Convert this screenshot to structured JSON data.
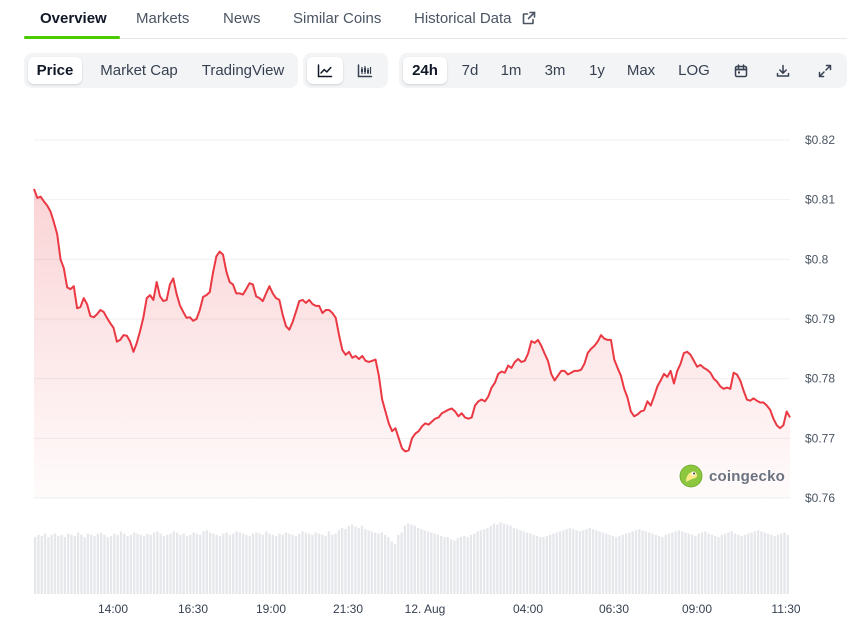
{
  "tabs": {
    "overview": "Overview",
    "markets": "Markets",
    "news": "News",
    "similar": "Similar Coins",
    "historical": "Historical Data"
  },
  "toolbar": {
    "price": "Price",
    "market_cap": "Market Cap",
    "tradingview": "TradingView",
    "line_chart_icon": "line-chart-icon",
    "candle_chart_icon": "candlestick-icon",
    "range": {
      "h24": "24h",
      "d7": "7d",
      "m1": "1m",
      "m3": "3m",
      "y1": "1y",
      "max": "Max"
    },
    "log": "LOG",
    "calendar_icon": "calendar-icon",
    "download_icon": "download-icon",
    "expand_icon": "expand-icon"
  },
  "watermark": {
    "text": "coingecko",
    "icon": "gecko-logo-icon"
  },
  "chart_data": {
    "type": "area",
    "ylim": [
      0.76,
      0.82
    ],
    "yticks": [
      "$0.82",
      "$0.81",
      "$0.8",
      "$0.79",
      "$0.78",
      "$0.77",
      "$0.76"
    ],
    "xticks": [
      "14:00",
      "16:30",
      "19:00",
      "21:30",
      "12. Aug",
      "04:00",
      "06:30",
      "09:00",
      "11:30"
    ],
    "grid": true,
    "line_color": "#ea3943",
    "fill_color": "#ea3943",
    "volume_color": "#e5e7eb",
    "series": [
      {
        "values": [
          0.8118,
          0.8103,
          0.8105,
          0.8097,
          0.809,
          0.808,
          0.8062,
          0.8042,
          0.8,
          0.7985,
          0.7953,
          0.795,
          0.7955,
          0.7918,
          0.792,
          0.7935,
          0.7925,
          0.7905,
          0.7903,
          0.7908,
          0.7915,
          0.7912,
          0.7902,
          0.7893,
          0.7885,
          0.7862,
          0.7865,
          0.7873,
          0.7872,
          0.7862,
          0.7845,
          0.786,
          0.788,
          0.7903,
          0.7935,
          0.794,
          0.7932,
          0.7962,
          0.7938,
          0.793,
          0.7932,
          0.7958,
          0.7968,
          0.7942,
          0.7923,
          0.7912,
          0.7902,
          0.7903,
          0.7897,
          0.79,
          0.7915,
          0.7937,
          0.794,
          0.7945,
          0.7978,
          0.8005,
          0.8013,
          0.8008,
          0.798,
          0.7962,
          0.7958,
          0.7943,
          0.7943,
          0.7941,
          0.795,
          0.796,
          0.7958,
          0.7938,
          0.7935,
          0.793,
          0.7943,
          0.7955,
          0.7943,
          0.7935,
          0.7932,
          0.7907,
          0.7888,
          0.7882,
          0.7895,
          0.7912,
          0.793,
          0.7932,
          0.7927,
          0.7932,
          0.7925,
          0.7922,
          0.7922,
          0.791,
          0.7915,
          0.7915,
          0.791,
          0.7902,
          0.7873,
          0.7848,
          0.784,
          0.7845,
          0.7835,
          0.7838,
          0.7833,
          0.7838,
          0.783,
          0.7828,
          0.783,
          0.7832,
          0.7805,
          0.7765,
          0.7745,
          0.7725,
          0.7712,
          0.7717,
          0.77,
          0.7683,
          0.7678,
          0.768,
          0.77,
          0.7708,
          0.7712,
          0.772,
          0.7725,
          0.7723,
          0.7728,
          0.7733,
          0.7735,
          0.7742,
          0.7745,
          0.7748,
          0.775,
          0.7745,
          0.7737,
          0.7742,
          0.7735,
          0.7733,
          0.7735,
          0.7755,
          0.7762,
          0.7765,
          0.7762,
          0.777,
          0.7785,
          0.7793,
          0.7808,
          0.7812,
          0.781,
          0.7822,
          0.7818,
          0.7828,
          0.7833,
          0.7828,
          0.783,
          0.7842,
          0.7863,
          0.786,
          0.7865,
          0.7855,
          0.7842,
          0.783,
          0.7808,
          0.7797,
          0.7805,
          0.7813,
          0.7813,
          0.7807,
          0.781,
          0.7813,
          0.7813,
          0.7815,
          0.7825,
          0.7843,
          0.785,
          0.7855,
          0.7862,
          0.7873,
          0.7867,
          0.7865,
          0.7865,
          0.7832,
          0.7818,
          0.7805,
          0.7783,
          0.7768,
          0.7745,
          0.7737,
          0.774,
          0.7745,
          0.7747,
          0.7762,
          0.7755,
          0.777,
          0.7787,
          0.7797,
          0.7808,
          0.7803,
          0.7813,
          0.7792,
          0.7813,
          0.7825,
          0.7843,
          0.7845,
          0.784,
          0.783,
          0.782,
          0.7823,
          0.7818,
          0.7815,
          0.781,
          0.78,
          0.7795,
          0.7787,
          0.7783,
          0.7785,
          0.7783,
          0.781,
          0.7807,
          0.7797,
          0.778,
          0.7765,
          0.7763,
          0.7767,
          0.7763,
          0.776,
          0.776,
          0.7755,
          0.7748,
          0.7733,
          0.7722,
          0.7717,
          0.7722,
          0.7745,
          0.7735
        ]
      }
    ],
    "volume": [
      0.5,
      0.52,
      0.51,
      0.53,
      0.5,
      0.52,
      0.53,
      0.51,
      0.52,
      0.5,
      0.53,
      0.52,
      0.51,
      0.54,
      0.52,
      0.5,
      0.53,
      0.52,
      0.51,
      0.53,
      0.54,
      0.52,
      0.5,
      0.51,
      0.53,
      0.52,
      0.55,
      0.53,
      0.51,
      0.52,
      0.54,
      0.53,
      0.52,
      0.51,
      0.53,
      0.52,
      0.54,
      0.55,
      0.53,
      0.51,
      0.52,
      0.53,
      0.55,
      0.54,
      0.52,
      0.53,
      0.51,
      0.52,
      0.54,
      0.53,
      0.52,
      0.55,
      0.56,
      0.54,
      0.53,
      0.52,
      0.51,
      0.53,
      0.54,
      0.52,
      0.53,
      0.55,
      0.54,
      0.53,
      0.52,
      0.51,
      0.53,
      0.54,
      0.53,
      0.52,
      0.55,
      0.53,
      0.52,
      0.51,
      0.53,
      0.52,
      0.54,
      0.53,
      0.52,
      0.51,
      0.53,
      0.55,
      0.54,
      0.53,
      0.52,
      0.54,
      0.53,
      0.52,
      0.51,
      0.55,
      0.52,
      0.53,
      0.56,
      0.58,
      0.57,
      0.6,
      0.61,
      0.59,
      0.58,
      0.6,
      0.57,
      0.56,
      0.55,
      0.54,
      0.53,
      0.54,
      0.52,
      0.5,
      0.46,
      0.44,
      0.52,
      0.54,
      0.6,
      0.62,
      0.61,
      0.6,
      0.58,
      0.57,
      0.56,
      0.55,
      0.54,
      0.53,
      0.52,
      0.51,
      0.5,
      0.5,
      0.48,
      0.47,
      0.49,
      0.5,
      0.51,
      0.5,
      0.52,
      0.53,
      0.55,
      0.56,
      0.57,
      0.58,
      0.6,
      0.62,
      0.61,
      0.63,
      0.62,
      0.61,
      0.6,
      0.58,
      0.57,
      0.56,
      0.55,
      0.54,
      0.53,
      0.52,
      0.51,
      0.5,
      0.5,
      0.51,
      0.52,
      0.53,
      0.54,
      0.55,
      0.56,
      0.57,
      0.58,
      0.57,
      0.56,
      0.55,
      0.56,
      0.57,
      0.58,
      0.57,
      0.56,
      0.55,
      0.54,
      0.53,
      0.52,
      0.51,
      0.5,
      0.51,
      0.52,
      0.53,
      0.54,
      0.55,
      0.56,
      0.57,
      0.56,
      0.55,
      0.54,
      0.53,
      0.52,
      0.51,
      0.5,
      0.52,
      0.53,
      0.54,
      0.55,
      0.56,
      0.55,
      0.54,
      0.53,
      0.52,
      0.51,
      0.53,
      0.54,
      0.55,
      0.53,
      0.52,
      0.51,
      0.5,
      0.52,
      0.53,
      0.54,
      0.55,
      0.53,
      0.52,
      0.51,
      0.52,
      0.53,
      0.54,
      0.55,
      0.56,
      0.55,
      0.54,
      0.53,
      0.52,
      0.51,
      0.52,
      0.53,
      0.54,
      0.52
    ]
  }
}
